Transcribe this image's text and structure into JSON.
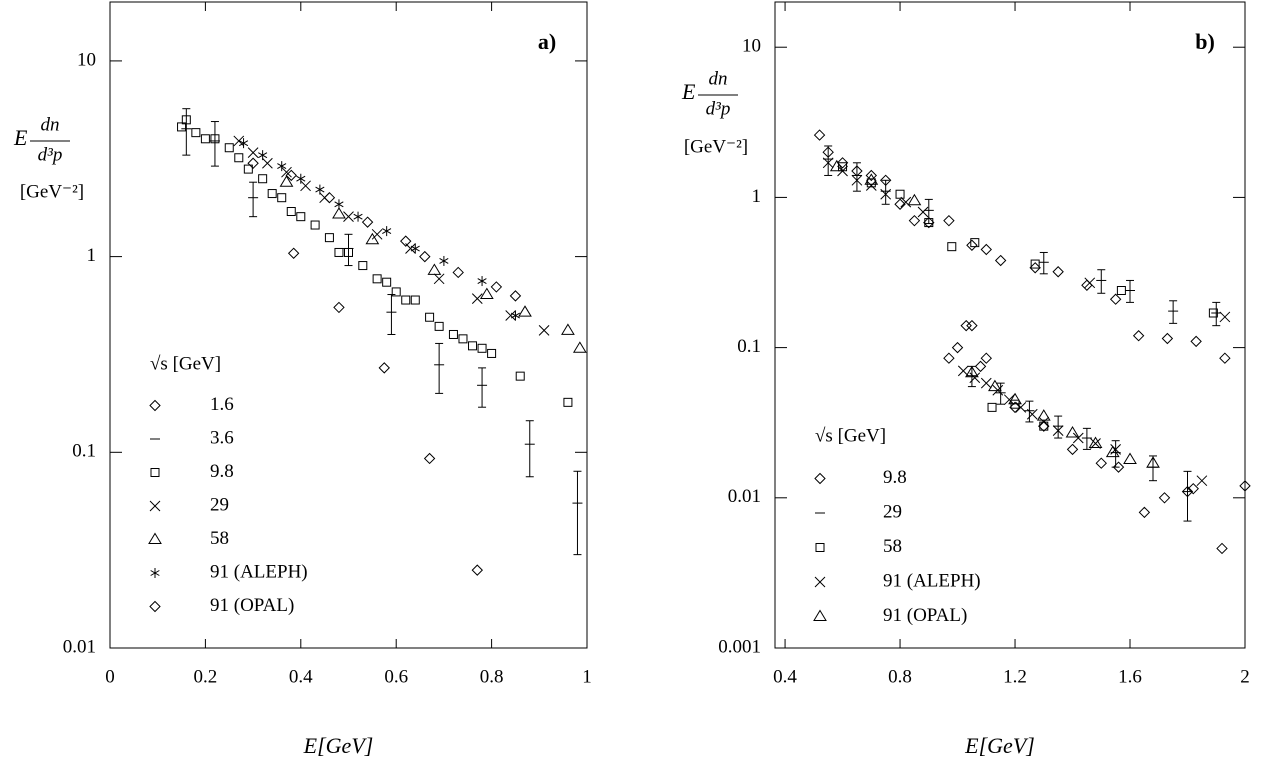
{
  "chart_data": [
    {
      "type": "scatter",
      "panel_label": "a)",
      "x_label": "E[GeV]",
      "y_label": {
        "prefix": "E",
        "numerator": "dn",
        "denominator": "d³p",
        "unit": "[GeV⁻²]"
      },
      "xlim": [
        0,
        1
      ],
      "ylim": [
        0.01,
        20
      ],
      "log_y": true,
      "xticks": [
        0,
        0.2,
        0.4,
        0.6,
        0.8,
        1
      ],
      "yticks": [
        0.01,
        0.1,
        1,
        10
      ],
      "legend_title": "√s [GeV]",
      "legend_position": "lower left",
      "series": [
        {
          "name": "1.6",
          "marker": "diamond",
          "color": "#000000",
          "x": [
            0.385,
            0.48,
            0.575,
            0.67,
            0.77
          ],
          "values": [
            1.04,
            0.55,
            0.27,
            0.093,
            0.025
          ]
        },
        {
          "name": "3.6",
          "marker": "dash",
          "color": "#000000",
          "x": [
            0.16,
            0.22,
            0.3,
            0.5,
            0.59,
            0.69,
            0.78,
            0.88,
            0.98
          ],
          "values": [
            4.5,
            3.9,
            2.0,
            1.1,
            0.52,
            0.28,
            0.22,
            0.11,
            0.055
          ],
          "errors": [
            1.2,
            1.0,
            0.4,
            0.2,
            0.12,
            0.08,
            0.05,
            0.035,
            0.025
          ]
        },
        {
          "name": "9.8",
          "marker": "square",
          "color": "#000000",
          "x": [
            0.15,
            0.16,
            0.18,
            0.2,
            0.22,
            0.25,
            0.27,
            0.29,
            0.32,
            0.34,
            0.36,
            0.38,
            0.4,
            0.43,
            0.46,
            0.48,
            0.5,
            0.53,
            0.56,
            0.58,
            0.6,
            0.62,
            0.64,
            0.67,
            0.69,
            0.72,
            0.74,
            0.76,
            0.78,
            0.8,
            0.86,
            0.96
          ],
          "values": [
            4.6,
            5.0,
            4.3,
            4.0,
            4.0,
            3.6,
            3.2,
            2.8,
            2.5,
            2.1,
            2.0,
            1.7,
            1.6,
            1.45,
            1.25,
            1.05,
            1.05,
            0.9,
            0.77,
            0.74,
            0.66,
            0.6,
            0.6,
            0.49,
            0.44,
            0.4,
            0.38,
            0.35,
            0.34,
            0.32,
            0.245,
            0.18
          ]
        },
        {
          "name": "29",
          "marker": "cross",
          "color": "#000000",
          "x": [
            0.27,
            0.3,
            0.33,
            0.37,
            0.41,
            0.45,
            0.5,
            0.56,
            0.63,
            0.69,
            0.77,
            0.84,
            0.91
          ],
          "values": [
            3.9,
            3.4,
            3.0,
            2.7,
            2.3,
            2.0,
            1.6,
            1.3,
            1.1,
            0.77,
            0.61,
            0.5,
            0.42
          ]
        },
        {
          "name": "58",
          "marker": "triangle",
          "color": "#000000",
          "x": [
            0.37,
            0.48,
            0.55,
            0.68,
            0.79,
            0.87,
            0.96,
            0.985
          ],
          "values": [
            2.4,
            1.65,
            1.22,
            0.85,
            0.64,
            0.52,
            0.42,
            0.34
          ]
        },
        {
          "name": "91 (ALEPH)",
          "marker": "asterisk",
          "color": "#000000",
          "x": [
            0.28,
            0.32,
            0.36,
            0.4,
            0.44,
            0.48,
            0.52,
            0.58,
            0.64,
            0.7,
            0.78,
            0.85
          ],
          "values": [
            3.8,
            3.3,
            2.9,
            2.5,
            2.2,
            1.85,
            1.6,
            1.35,
            1.1,
            0.95,
            0.75,
            0.5
          ]
        },
        {
          "name": "91 (OPAL)",
          "marker": "diamond",
          "color": "#000000",
          "x": [
            0.3,
            0.38,
            0.46,
            0.54,
            0.62,
            0.66,
            0.73,
            0.81,
            0.85
          ],
          "values": [
            3.0,
            2.6,
            2.0,
            1.5,
            1.2,
            1.0,
            0.83,
            0.7,
            0.63
          ]
        }
      ]
    },
    {
      "type": "scatter",
      "panel_label": "b)",
      "x_label": "E[GeV]",
      "y_label": {
        "prefix": "E",
        "numerator": "dn",
        "denominator": "d³p",
        "unit": "[GeV⁻²]"
      },
      "xlim": [
        0.365,
        2
      ],
      "ylim": [
        0.001,
        20
      ],
      "log_y": true,
      "xticks": [
        0.4,
        0.8,
        1.2,
        1.6,
        2
      ],
      "yticks": [
        0.001,
        0.01,
        0.1,
        1,
        10
      ],
      "legend_title": "√s [GeV]",
      "legend_position": "lower left",
      "series": [
        {
          "name": "9.8",
          "marker": "diamond",
          "color": "#000000",
          "x": [
            0.52,
            0.55,
            0.6,
            0.65,
            0.7,
            0.75,
            0.8,
            0.85,
            0.9,
            0.97,
            1.05,
            1.1,
            1.15,
            1.27,
            1.35,
            1.45,
            1.55,
            1.63,
            1.73,
            1.83,
            1.93,
            0.97,
            1.0,
            1.03,
            1.05,
            1.08,
            1.1,
            1.2,
            1.3,
            1.4,
            1.5,
            1.56,
            1.65,
            1.72,
            1.8,
            1.82,
            1.92,
            2.0
          ],
          "values": [
            2.6,
            2.0,
            1.7,
            1.5,
            1.4,
            1.3,
            0.9,
            0.7,
            0.68,
            0.7,
            0.48,
            0.45,
            0.38,
            0.34,
            0.32,
            0.26,
            0.21,
            0.12,
            0.115,
            0.11,
            0.085,
            0.085,
            0.1,
            0.14,
            0.14,
            0.075,
            0.085,
            0.04,
            0.03,
            0.021,
            0.017,
            0.016,
            0.008,
            0.01,
            0.011,
            0.0115,
            0.0046,
            0.012
          ]
        },
        {
          "name": "29",
          "marker": "dash",
          "color": "#000000",
          "x": [
            0.55,
            0.65,
            0.75,
            0.9,
            1.3,
            1.5,
            1.6,
            1.75,
            1.9,
            1.05,
            1.15,
            1.25,
            1.35,
            1.45,
            1.55,
            1.68,
            1.8
          ],
          "values": [
            1.8,
            1.4,
            1.1,
            0.82,
            0.37,
            0.28,
            0.24,
            0.175,
            0.17,
            0.065,
            0.05,
            0.038,
            0.03,
            0.025,
            0.02,
            0.016,
            0.011
          ],
          "errors": [
            0.4,
            0.3,
            0.2,
            0.15,
            0.06,
            0.05,
            0.04,
            0.03,
            0.03,
            0.01,
            0.008,
            0.006,
            0.005,
            0.004,
            0.004,
            0.003,
            0.004
          ]
        },
        {
          "name": "58",
          "marker": "square",
          "color": "#000000",
          "x": [
            0.6,
            0.7,
            0.8,
            0.9,
            0.98,
            1.06,
            1.27,
            1.57,
            1.89,
            1.12,
            1.2,
            1.3
          ],
          "values": [
            1.6,
            1.25,
            1.05,
            0.68,
            0.47,
            0.5,
            0.36,
            0.24,
            0.17,
            0.04,
            0.042,
            0.03
          ]
        },
        {
          "name": "91 (ALEPH)",
          "marker": "cross",
          "color": "#000000",
          "x": [
            0.55,
            0.6,
            0.65,
            0.7,
            0.75,
            0.82,
            0.88,
            1.46,
            1.93,
            1.02,
            1.06,
            1.1,
            1.14,
            1.18,
            1.22,
            1.26,
            1.3,
            1.35,
            1.42,
            1.48,
            1.55,
            1.85
          ],
          "values": [
            1.7,
            1.5,
            1.3,
            1.2,
            1.05,
            0.93,
            0.8,
            0.27,
            0.16,
            0.07,
            0.063,
            0.058,
            0.052,
            0.045,
            0.04,
            0.036,
            0.032,
            0.028,
            0.025,
            0.023,
            0.021,
            0.013
          ]
        },
        {
          "name": "91 (OPAL)",
          "marker": "triangle",
          "color": "#000000",
          "x": [
            0.58,
            0.7,
            0.85,
            1.05,
            1.13,
            1.2,
            1.3,
            1.4,
            1.48,
            1.54,
            1.6,
            1.68
          ],
          "values": [
            1.6,
            1.3,
            0.95,
            0.068,
            0.055,
            0.045,
            0.035,
            0.027,
            0.023,
            0.02,
            0.018,
            0.017
          ]
        }
      ]
    }
  ]
}
